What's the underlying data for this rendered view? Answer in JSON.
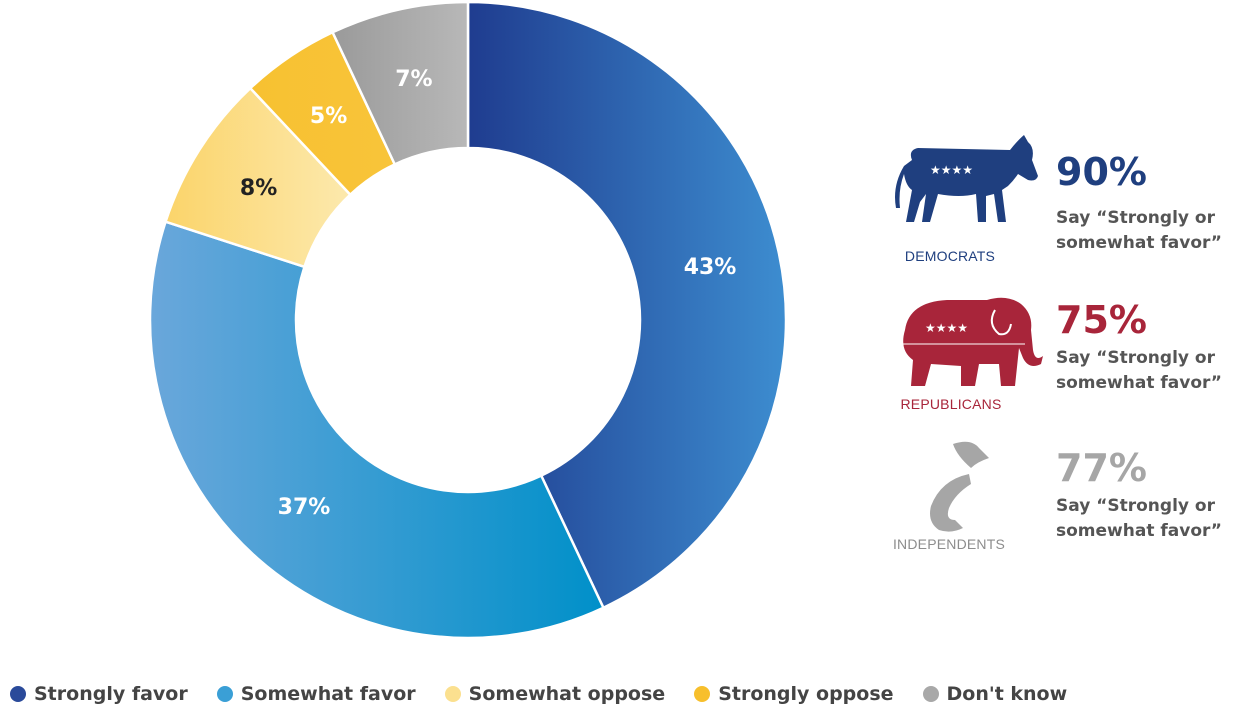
{
  "chart_data": {
    "type": "pie",
    "categories": [
      "Strongly favor",
      "Somewhat favor",
      "Somewhat oppose",
      "Strongly oppose",
      "Don't know"
    ],
    "values": [
      43,
      37,
      8,
      5,
      7
    ],
    "labels": [
      "43%",
      "37%",
      "8%",
      "5%",
      "7%"
    ],
    "colors": [
      "#2a4a9a",
      "#3a9fd6",
      "#fbe08f",
      "#f7bf2c",
      "#a8a8a8"
    ],
    "label_colors": [
      "#ffffff",
      "#ffffff",
      "#222222",
      "#ffffff",
      "#ffffff"
    ],
    "donut": true,
    "legend_position": "bottom"
  },
  "parties": [
    {
      "name": "DEMOCRATS",
      "pct": "90%",
      "say": "Say “Strongly or somewhat favor”",
      "color": "#1f3f7f",
      "icon": "donkey-icon"
    },
    {
      "name": "REPUBLICANS",
      "pct": "75%",
      "say": "Say “Strongly or somewhat favor”",
      "color": "#a8253a",
      "icon": "elephant-icon"
    },
    {
      "name": "INDEPENDENTS",
      "pct": "77%",
      "say": "Say “Strongly or somewhat favor”",
      "color": "#a6a6a6",
      "icon": "independent-i-icon"
    }
  ]
}
